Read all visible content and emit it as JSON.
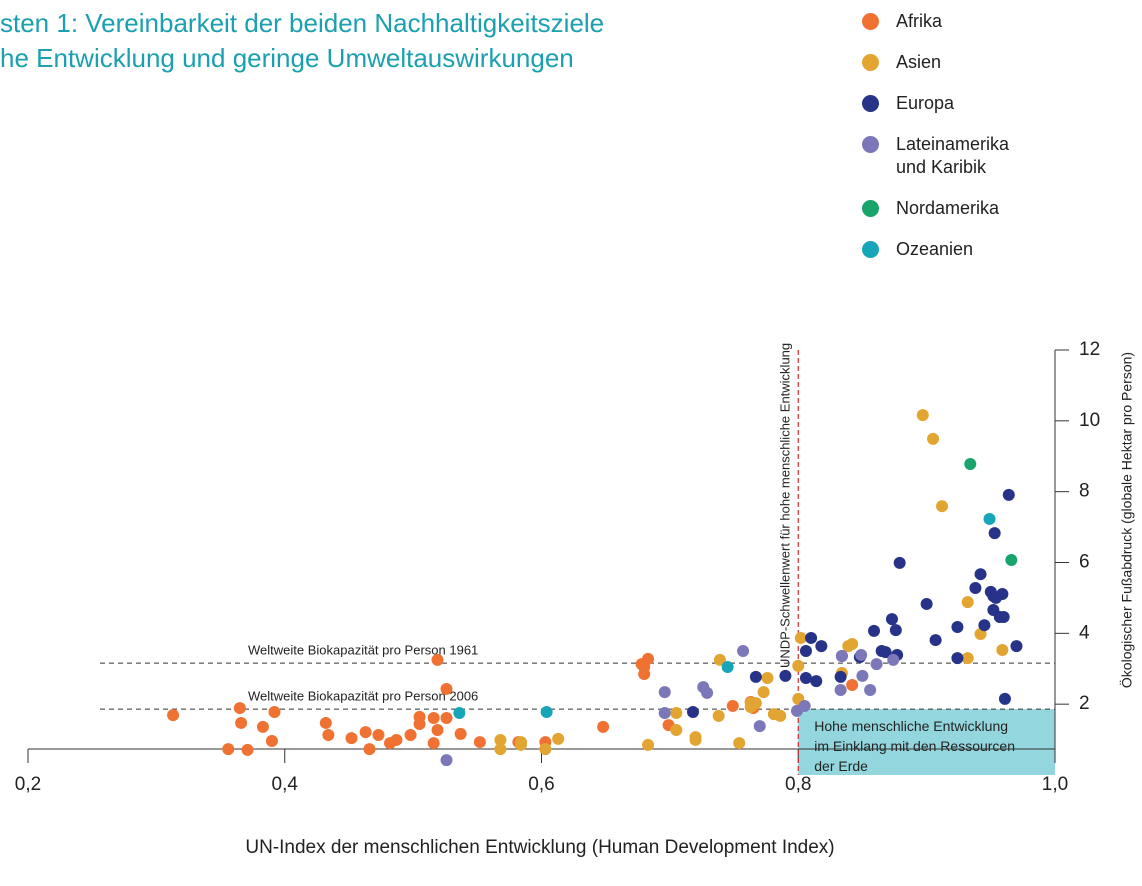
{
  "chart_data": {
    "type": "scatter",
    "title": [
      "sten 1: Vereinbarkeit der beiden Nachhaltigkeitsziele",
      "he Entwicklung und geringe Umweltauswirkungen"
    ],
    "x_label": "UN-Index der menschlichen Entwicklung (Human Development Index)",
    "y_label": "Ökologischer Fußabdruck (globale Hektar pro Person)",
    "xlim": [
      0.2,
      1.0
    ],
    "xticks": [
      {
        "value": 0.2,
        "label": "0,2"
      },
      {
        "value": 0.4,
        "label": "0,4"
      },
      {
        "value": 0.6,
        "label": "0,6"
      },
      {
        "value": 0.8,
        "label": "0,8"
      },
      {
        "value": 1.0,
        "label": "1,0"
      }
    ],
    "ylim": [
      0,
      12
    ],
    "yticks": [
      2,
      4,
      6,
      8,
      10,
      12
    ],
    "reference_lines": [
      {
        "label": "Weltweite Biokapazität pro Person 1961",
        "value": 3.16
      },
      {
        "label": "Weltweite Biokapazität pro Person 2006",
        "value": 1.86
      }
    ],
    "threshold": {
      "label": "UNDP-Schwellenwert für hohe menschliche Entwicklung",
      "value": 0.8
    },
    "region_label": [
      "Hohe menschliche Entwicklung",
      "im Einklang mit den Ressourcen",
      "der Erde"
    ],
    "series": [
      {
        "name": "Afrika",
        "color": "#f07232",
        "x": [
          0.313,
          0.365,
          0.366,
          0.356,
          0.371,
          0.383,
          0.392,
          0.39,
          0.432,
          0.434,
          0.452,
          0.463,
          0.466,
          0.473,
          0.482,
          0.487,
          0.498,
          0.505,
          0.505,
          0.516,
          0.516,
          0.519,
          0.519,
          0.526,
          0.526,
          0.537,
          0.552,
          0.582,
          0.603,
          0.648,
          0.678,
          0.68,
          0.68,
          0.683,
          0.699,
          0.749,
          0.763,
          0.765,
          0.842
        ],
        "values": [
          1.69,
          1.89,
          1.47,
          0.73,
          0.71,
          1.36,
          1.78,
          0.96,
          1.47,
          1.13,
          1.04,
          1.21,
          0.73,
          1.13,
          0.9,
          0.99,
          1.13,
          1.44,
          1.64,
          1.61,
          0.9,
          1.27,
          3.25,
          2.43,
          1.61,
          1.16,
          0.93,
          0.93,
          0.93,
          1.36,
          3.13,
          3.05,
          2.85,
          3.28,
          1.41,
          1.95,
          2.06,
          1.89,
          2.54
        ]
      },
      {
        "name": "Asien",
        "color": "#e3a532",
        "x": [
          0.568,
          0.568,
          0.584,
          0.584,
          0.613,
          0.603,
          0.683,
          0.705,
          0.705,
          0.72,
          0.72,
          0.738,
          0.739,
          0.754,
          0.763,
          0.763,
          0.767,
          0.773,
          0.776,
          0.781,
          0.786,
          0.8,
          0.8,
          0.802,
          0.834,
          0.839,
          0.842,
          0.897,
          0.905,
          0.912,
          0.932,
          0.932,
          0.942,
          0.959
        ],
        "values": [
          0.99,
          0.73,
          0.93,
          0.85,
          1.02,
          0.73,
          0.85,
          1.75,
          1.27,
          1.07,
          0.99,
          1.67,
          3.25,
          0.9,
          1.92,
          2.03,
          2.03,
          2.34,
          2.74,
          1.72,
          1.67,
          3.08,
          2.15,
          3.87,
          2.88,
          3.64,
          3.7,
          10.16,
          9.49,
          7.59,
          3.3,
          4.88,
          3.98,
          3.53
        ]
      },
      {
        "name": "Europa",
        "color": "#263388",
        "x": [
          0.718,
          0.767,
          0.79,
          0.806,
          0.806,
          0.81,
          0.814,
          0.818,
          0.833,
          0.834,
          0.848,
          0.859,
          0.865,
          0.868,
          0.873,
          0.876,
          0.877,
          0.879,
          0.9,
          0.907,
          0.924,
          0.924,
          0.938,
          0.942,
          0.945,
          0.95,
          0.952,
          0.952,
          0.954,
          0.953,
          0.957,
          0.959,
          0.96,
          0.961,
          0.964,
          0.97
        ],
        "values": [
          1.78,
          2.77,
          2.8,
          2.74,
          3.5,
          3.87,
          2.65,
          3.64,
          2.77,
          3.36,
          3.33,
          4.07,
          3.5,
          3.47,
          4.4,
          4.09,
          3.39,
          5.99,
          4.83,
          3.81,
          3.3,
          4.18,
          5.28,
          5.67,
          4.23,
          5.17,
          4.66,
          5.05,
          5.0,
          6.83,
          4.46,
          5.11,
          4.46,
          2.15,
          7.91,
          3.64
        ]
      },
      {
        "name": "Lateinamerika und Karibik",
        "color": "#7b77b8",
        "x": [
          0.526,
          0.696,
          0.696,
          0.726,
          0.729,
          0.757,
          0.77,
          0.799,
          0.805,
          0.833,
          0.834,
          0.849,
          0.85,
          0.856,
          0.861,
          0.874
        ],
        "values": [
          0.42,
          2.34,
          1.75,
          2.48,
          2.32,
          3.5,
          1.38,
          1.81,
          1.95,
          2.4,
          3.36,
          3.39,
          2.8,
          2.4,
          3.13,
          3.25
        ]
      },
      {
        "name": "Nordamerika",
        "color": "#1aa36a",
        "x": [
          0.934,
          0.966
        ],
        "values": [
          8.78,
          6.07
        ]
      },
      {
        "name": "Ozeanien",
        "color": "#17a6b8",
        "x": [
          0.536,
          0.604,
          0.745,
          0.949
        ],
        "values": [
          1.75,
          1.78,
          3.05,
          7.23
        ]
      }
    ]
  }
}
